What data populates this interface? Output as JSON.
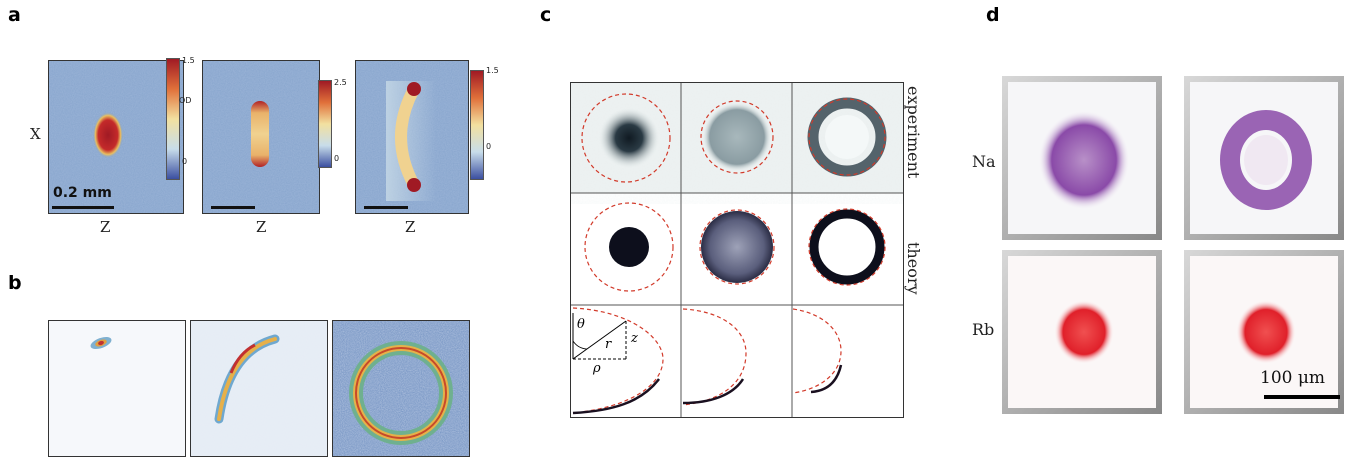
{
  "panels": {
    "a": {
      "label": "a",
      "x_axis": "Z",
      "y_axis": "X",
      "scalebar": "0.2 mm",
      "od_label": "OD",
      "colorbar1": {
        "max": "1.5",
        "min": "0"
      },
      "colorbar2": {
        "max": "2.5",
        "min": "0"
      },
      "colorbar3": {
        "max": "1.5",
        "min": "0"
      }
    },
    "b": {
      "label": "b"
    },
    "c": {
      "label": "c",
      "row1": "experiment",
      "row2": "theory",
      "theta": "θ",
      "r": "r",
      "z": "z",
      "rho": "ρ"
    },
    "d": {
      "label": "d",
      "na": "Na",
      "rb": "Rb",
      "scalebar": "100 μm"
    }
  },
  "colors": {
    "od_high": "#a01a24",
    "od_low": "#3b4fa0",
    "na": "#8a4aa8",
    "rb": "#e0202a",
    "circle_dashed": "#d23a2a"
  }
}
